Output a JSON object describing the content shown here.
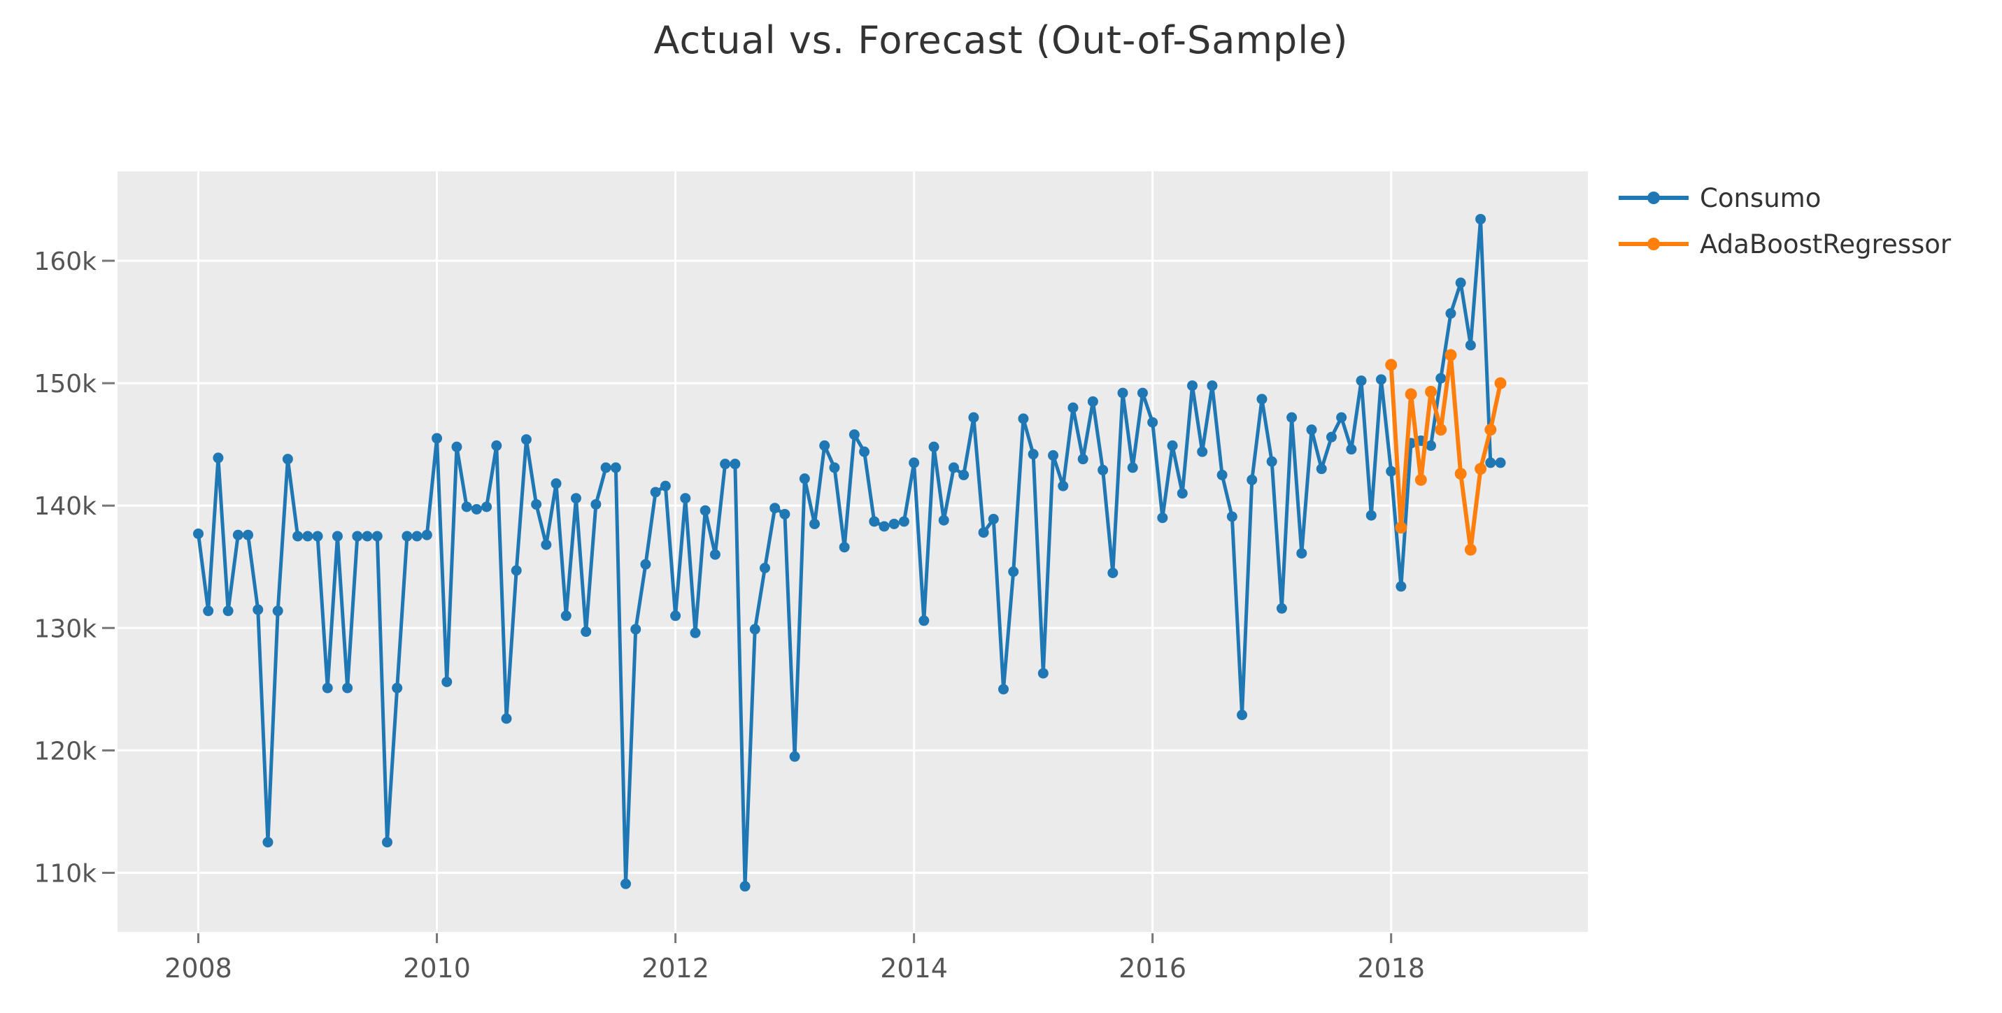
{
  "page_title": "Actual vs. Forecast (Out-of-Sample)",
  "chart_data": {
    "type": "line",
    "title": "Actual vs. Forecast (Out-of-Sample)",
    "xlabel": "",
    "ylabel": "",
    "values_unit": "thousands",
    "x_unit": "month",
    "x_start": "2008-01",
    "x_tick_labels": [
      "2008",
      "2010",
      "2012",
      "2014",
      "2016",
      "2018"
    ],
    "x_tick_month_index": [
      0,
      24,
      48,
      72,
      96,
      120
    ],
    "y_tick_labels": [
      "110k",
      "120k",
      "130k",
      "140k",
      "150k",
      "160k"
    ],
    "y_tick_values": [
      110,
      120,
      130,
      140,
      150,
      160
    ],
    "ylim": [
      104.5,
      167.4
    ],
    "xlim_month_index": [
      -8.1,
      139.8
    ],
    "grid": "on",
    "plot_background": "#ebebeb",
    "grid_color": "#ffffff",
    "tick_color": "#777777",
    "tick_label_color": "#555555",
    "legend_position": "right-outside-top",
    "series": [
      {
        "name": "Consumo",
        "color": "#1f77b4",
        "start_month": "2008-01",
        "start_index": 0,
        "values": [
          137.7,
          131.4,
          143.9,
          131.4,
          137.6,
          137.6,
          131.5,
          112.5,
          131.4,
          143.8,
          137.5,
          137.5,
          137.5,
          125.1,
          137.5,
          125.1,
          137.5,
          137.5,
          137.5,
          112.5,
          125.1,
          137.5,
          137.5,
          137.6,
          145.5,
          125.6,
          144.8,
          139.9,
          139.7,
          139.9,
          144.9,
          122.6,
          134.7,
          145.4,
          140.1,
          136.8,
          141.8,
          131.0,
          140.6,
          129.7,
          140.1,
          143.1,
          143.1,
          109.1,
          129.9,
          135.2,
          141.1,
          141.6,
          131.0,
          140.6,
          129.6,
          139.6,
          136.0,
          143.4,
          143.4,
          108.9,
          129.9,
          134.9,
          139.8,
          139.3,
          119.5,
          142.2,
          138.5,
          144.9,
          143.1,
          136.6,
          145.8,
          144.4,
          138.7,
          138.3,
          138.5,
          138.7,
          143.5,
          130.6,
          144.8,
          138.8,
          143.1,
          142.5,
          147.2,
          137.8,
          138.9,
          125.0,
          134.6,
          147.1,
          144.2,
          126.3,
          144.1,
          141.6,
          148.0,
          143.8,
          148.5,
          142.9,
          134.5,
          149.2,
          143.1,
          149.2,
          146.8,
          139.0,
          144.9,
          141.0,
          149.8,
          144.4,
          149.8,
          142.5,
          139.1,
          122.9,
          142.1,
          148.7,
          143.6,
          131.6,
          147.2,
          136.1,
          146.2,
          143.0,
          145.6,
          147.2,
          144.6,
          150.2,
          139.2,
          150.3,
          142.8,
          133.4,
          145.1,
          145.3,
          144.9,
          150.4,
          155.7,
          158.2,
          153.1,
          163.4,
          143.5,
          143.5
        ]
      },
      {
        "name": "AdaBoostRegressor",
        "color": "#ff7f0e",
        "start_month": "2018-01",
        "start_index": 120,
        "values": [
          151.5,
          138.2,
          149.1,
          142.1,
          149.3,
          146.2,
          152.3,
          142.6,
          136.4,
          143.0,
          146.2,
          150.0
        ]
      }
    ]
  }
}
